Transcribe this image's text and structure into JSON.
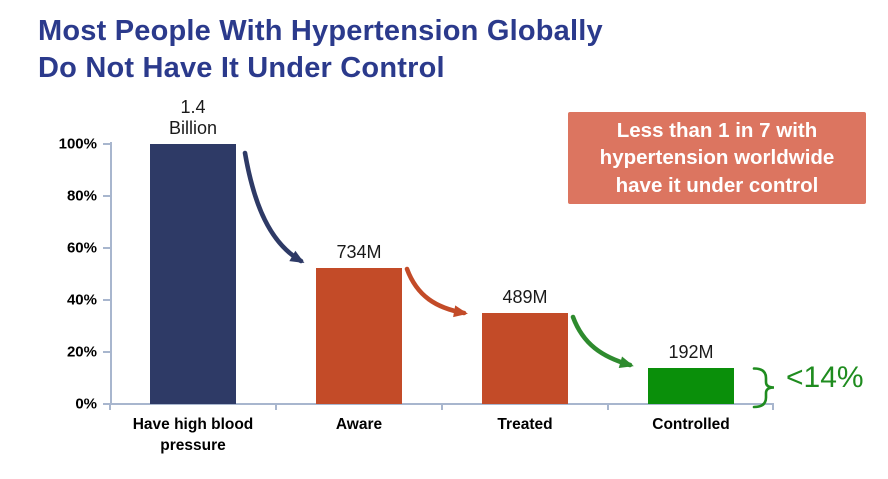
{
  "page": {
    "title_line1": "Most People With Hypertension Globally",
    "title_line2": "Do Not Have It Under Control"
  },
  "callout": {
    "text": "Less than 1 in 7 with hypertension worldwide have it under control"
  },
  "annotation": {
    "label": "<14%"
  },
  "colors": {
    "title_navy": "#2B3A8C",
    "bar_navy": "#2E3A66",
    "bar_orange": "#C34B28",
    "bar_green": "#0A8F0A",
    "arrow_green": "#2E8B2E",
    "annotation_green": "#1F8C1F",
    "callout_bg": "#DC7560",
    "axis": "#A8B6CE",
    "label_black": "#1A1A1A"
  },
  "chart_data": {
    "type": "bar",
    "title": "Most People With Hypertension Globally Do Not Have It Under Control",
    "categories": [
      "Have high blood pressure",
      "Aware",
      "Treated",
      "Controlled"
    ],
    "category_label_lines": [
      [
        "Have high blood",
        "pressure"
      ],
      [
        "Aware"
      ],
      [
        "Treated"
      ],
      [
        "Controlled"
      ]
    ],
    "values_millions": [
      1400,
      734,
      489,
      192
    ],
    "values_pct_of_total": [
      100,
      52.4,
      34.9,
      13.7
    ],
    "value_labels": [
      [
        "1.4",
        "Billion"
      ],
      [
        "734M"
      ],
      [
        "489M"
      ],
      [
        "192M"
      ]
    ],
    "bar_colors": [
      "#2E3A66",
      "#C34B28",
      "#C34B28",
      "#0A8F0A"
    ],
    "xlabel": "",
    "ylabel": "",
    "ylim": [
      0,
      100
    ],
    "yticks": [
      "100%",
      "80%",
      "60%",
      "40%",
      "20%",
      "0%"
    ],
    "grid": false,
    "legend": "none",
    "annotations": [
      "<14%",
      "Less than 1 in 7 with hypertension worldwide have it under control"
    ]
  }
}
